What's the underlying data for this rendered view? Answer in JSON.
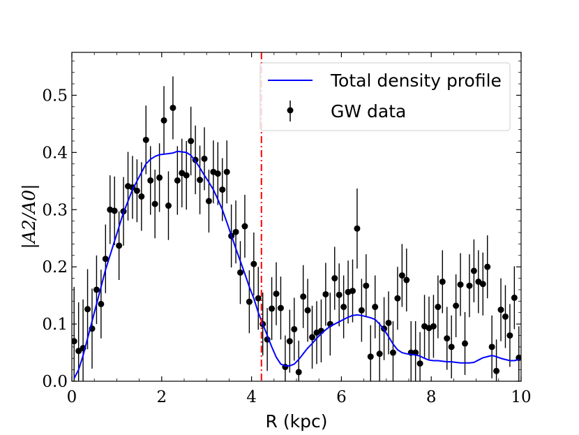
{
  "chart_data": {
    "type": "scatter",
    "xlabel": "R (kpc)",
    "ylabel": "|A2/A0|",
    "xlim": [
      0,
      10
    ],
    "ylim": [
      0,
      0.575
    ],
    "x_ticks": [
      "0",
      "2",
      "4",
      "6",
      "8",
      "10"
    ],
    "y_ticks": [
      "0.0",
      "0.1",
      "0.2",
      "0.3",
      "0.4",
      "0.5"
    ],
    "grid": false,
    "legend_position": "top-right",
    "vertical_line": {
      "x": 4.22,
      "color": "#ff0000",
      "style": "dash-dot"
    },
    "series": [
      {
        "name": "Total density profile",
        "kind": "line",
        "color": "#0000ff",
        "x": [
          0.05,
          0.15,
          0.25,
          0.35,
          0.45,
          0.55,
          0.65,
          0.75,
          0.85,
          0.95,
          1.05,
          1.15,
          1.25,
          1.35,
          1.45,
          1.55,
          1.65,
          1.75,
          1.85,
          1.95,
          2.05,
          2.15,
          2.25,
          2.35,
          2.45,
          2.55,
          2.65,
          2.75,
          2.85,
          2.95,
          3.05,
          3.15,
          3.25,
          3.35,
          3.45,
          3.55,
          3.65,
          3.75,
          3.85,
          3.95,
          4.05,
          4.15,
          4.25,
          4.35,
          4.45,
          4.55,
          4.65,
          4.75,
          4.85,
          4.95,
          5.05,
          5.15,
          5.25,
          5.35,
          5.45,
          5.55,
          5.65,
          5.75,
          5.85,
          5.95,
          6.05,
          6.15,
          6.25,
          6.35,
          6.45,
          6.55,
          6.65,
          6.75,
          6.85,
          6.95,
          7.05,
          7.15,
          7.25,
          7.35,
          7.45,
          7.55,
          7.65,
          7.75,
          7.85,
          7.95,
          8.05,
          8.15,
          8.25,
          8.35,
          8.45,
          8.55,
          8.65,
          8.75,
          8.85,
          8.95,
          9.05,
          9.15,
          9.25,
          9.35,
          9.45,
          9.55,
          9.65,
          9.75,
          9.85,
          9.95
        ],
        "y": [
          0.005,
          0.02,
          0.045,
          0.075,
          0.105,
          0.135,
          0.165,
          0.195,
          0.22,
          0.245,
          0.27,
          0.295,
          0.315,
          0.335,
          0.35,
          0.365,
          0.38,
          0.388,
          0.393,
          0.396,
          0.397,
          0.398,
          0.399,
          0.402,
          0.401,
          0.4,
          0.395,
          0.385,
          0.373,
          0.36,
          0.348,
          0.335,
          0.318,
          0.3,
          0.278,
          0.255,
          0.232,
          0.21,
          0.188,
          0.165,
          0.145,
          0.12,
          0.1,
          0.08,
          0.06,
          0.042,
          0.03,
          0.027,
          0.027,
          0.03,
          0.038,
          0.048,
          0.058,
          0.066,
          0.075,
          0.083,
          0.09,
          0.096,
          0.1,
          0.104,
          0.108,
          0.112,
          0.115,
          0.116,
          0.115,
          0.113,
          0.111,
          0.108,
          0.1,
          0.09,
          0.078,
          0.065,
          0.055,
          0.05,
          0.048,
          0.047,
          0.046,
          0.044,
          0.04,
          0.037,
          0.036,
          0.036,
          0.035,
          0.034,
          0.034,
          0.033,
          0.032,
          0.032,
          0.032,
          0.033,
          0.037,
          0.041,
          0.043,
          0.045,
          0.043,
          0.04,
          0.038,
          0.036,
          0.036,
          0.038
        ]
      },
      {
        "name": "GW data",
        "kind": "errorbar",
        "color": "#000000",
        "x": [
          0.05,
          0.15,
          0.25,
          0.35,
          0.45,
          0.55,
          0.65,
          0.75,
          0.85,
          0.95,
          1.05,
          1.15,
          1.25,
          1.35,
          1.45,
          1.55,
          1.65,
          1.75,
          1.85,
          1.95,
          2.05,
          2.15,
          2.25,
          2.35,
          2.45,
          2.55,
          2.65,
          2.75,
          2.85,
          2.95,
          3.05,
          3.15,
          3.25,
          3.35,
          3.45,
          3.55,
          3.65,
          3.75,
          3.85,
          3.95,
          4.05,
          4.15,
          4.25,
          4.35,
          4.45,
          4.55,
          4.65,
          4.75,
          4.85,
          4.95,
          5.05,
          5.15,
          5.25,
          5.35,
          5.45,
          5.55,
          5.65,
          5.75,
          5.85,
          5.95,
          6.05,
          6.15,
          6.25,
          6.35,
          6.45,
          6.55,
          6.65,
          6.75,
          6.85,
          6.95,
          7.05,
          7.15,
          7.25,
          7.35,
          7.45,
          7.55,
          7.65,
          7.75,
          7.85,
          7.95,
          8.05,
          8.15,
          8.25,
          8.35,
          8.45,
          8.55,
          8.65,
          8.75,
          8.85,
          8.95,
          9.05,
          9.15,
          9.25,
          9.35,
          9.45,
          9.55,
          9.65,
          9.75,
          9.85,
          9.95
        ],
        "y": [
          0.07,
          0.053,
          0.058,
          0.126,
          0.092,
          0.16,
          0.135,
          0.214,
          0.3,
          0.298,
          0.237,
          0.297,
          0.341,
          0.339,
          0.333,
          0.323,
          0.422,
          0.351,
          0.31,
          0.356,
          0.456,
          0.307,
          0.478,
          0.351,
          0.364,
          0.36,
          0.42,
          0.387,
          0.352,
          0.389,
          0.315,
          0.366,
          0.363,
          0.335,
          0.366,
          0.254,
          0.261,
          0.19,
          0.271,
          0.139,
          0.205,
          0.145,
          0.1,
          0.073,
          0.127,
          0.153,
          0.128,
          0.025,
          0.07,
          0.091,
          0.016,
          0.148,
          0.124,
          0.077,
          0.085,
          0.088,
          0.152,
          0.1,
          0.18,
          0.151,
          0.13,
          0.156,
          0.158,
          0.267,
          0.124,
          0.167,
          0.043,
          0.13,
          0.048,
          0.092,
          0.102,
          0.05,
          0.145,
          0.185,
          0.177,
          0.05,
          0.05,
          0.031,
          0.096,
          0.093,
          0.096,
          0.13,
          0.174,
          0.075,
          0.06,
          0.132,
          0.169,
          0.066,
          0.167,
          0.193,
          0.174,
          0.17,
          0.2,
          0.06,
          0.018,
          0.125,
          0.113,
          0.08,
          0.146,
          0.041
        ],
        "yerr": [
          0.095,
          0.085,
          0.085,
          0.07,
          0.07,
          0.06,
          0.06,
          0.06,
          0.06,
          0.06,
          0.06,
          0.06,
          0.06,
          0.055,
          0.055,
          0.06,
          0.06,
          0.06,
          0.06,
          0.06,
          0.06,
          0.06,
          0.055,
          0.06,
          0.06,
          0.06,
          0.06,
          0.06,
          0.06,
          0.055,
          0.055,
          0.055,
          0.055,
          0.055,
          0.055,
          0.055,
          0.055,
          0.055,
          0.055,
          0.055,
          0.055,
          0.055,
          0.055,
          0.055,
          0.055,
          0.055,
          0.055,
          0.055,
          0.055,
          0.055,
          0.055,
          0.055,
          0.055,
          0.055,
          0.055,
          0.055,
          0.055,
          0.055,
          0.055,
          0.055,
          0.055,
          0.055,
          0.055,
          0.07,
          0.055,
          0.055,
          0.055,
          0.055,
          0.055,
          0.055,
          0.055,
          0.055,
          0.055,
          0.055,
          0.055,
          0.055,
          0.055,
          0.055,
          0.055,
          0.055,
          0.055,
          0.055,
          0.055,
          0.055,
          0.055,
          0.055,
          0.055,
          0.055,
          0.055,
          0.055,
          0.055,
          0.055,
          0.055,
          0.055,
          0.055,
          0.055,
          0.055,
          0.055,
          0.055,
          0.055
        ]
      }
    ]
  }
}
